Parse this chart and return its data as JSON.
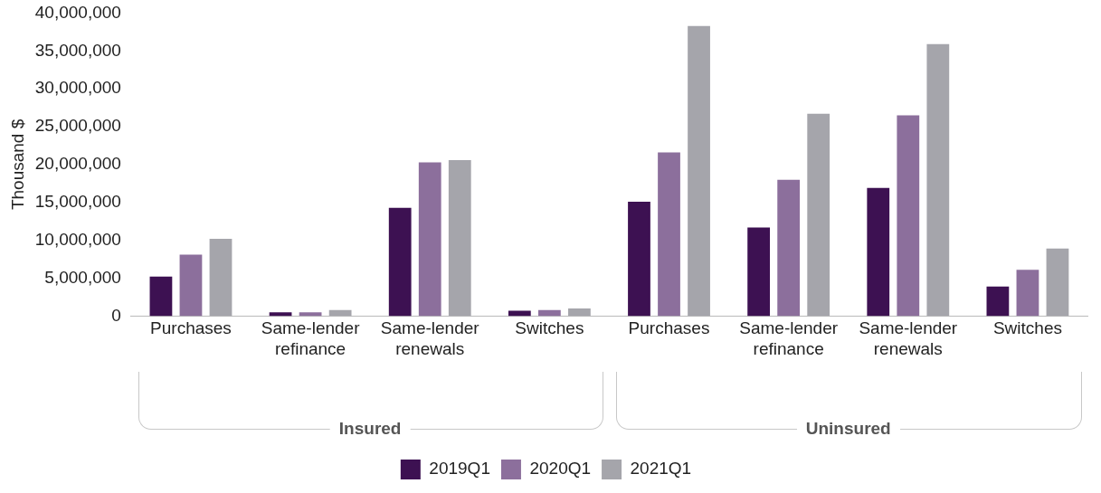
{
  "chart_data": {
    "type": "bar",
    "ylabel": "Thousand $",
    "categories": [
      "Purchases",
      "Same-lender refinance",
      "Same-lender renewals",
      "Switches",
      "Purchases",
      "Same-lender refinance",
      "Same-lender renewals",
      "Switches"
    ],
    "annotations": [
      "Insured",
      "Uninsured"
    ],
    "series": [
      {
        "name": "2019Q1",
        "color": "#3d1152",
        "values": [
          5200000,
          500000,
          14300000,
          700000,
          15100000,
          11700000,
          16900000,
          3900000
        ]
      },
      {
        "name": "2020Q1",
        "color": "#8c6f9c",
        "values": [
          8100000,
          500000,
          20300000,
          800000,
          21600000,
          18000000,
          26500000,
          6100000
        ]
      },
      {
        "name": "2021Q1",
        "color": "#a5a5ab",
        "values": [
          10200000,
          800000,
          20600000,
          1000000,
          38300000,
          26700000,
          35900000,
          8900000
        ]
      }
    ],
    "ylim": [
      0,
      40000000
    ],
    "yticks": [
      0,
      {
        "value": 5000000,
        "label": "5,000,000"
      },
      {
        "value": 10000000,
        "label": "10,000,000"
      },
      {
        "value": 15000000,
        "label": "15,000,000"
      },
      {
        "value": 20000000,
        "label": "20,000,000"
      },
      {
        "value": 25000000,
        "label": "25,000,000"
      },
      {
        "value": 30000000,
        "label": "30,000,000"
      },
      {
        "value": 35000000,
        "label": "35,000,000"
      },
      {
        "value": 40000000,
        "label": "40,000,000"
      }
    ],
    "grid": false,
    "legend": "bottom"
  }
}
